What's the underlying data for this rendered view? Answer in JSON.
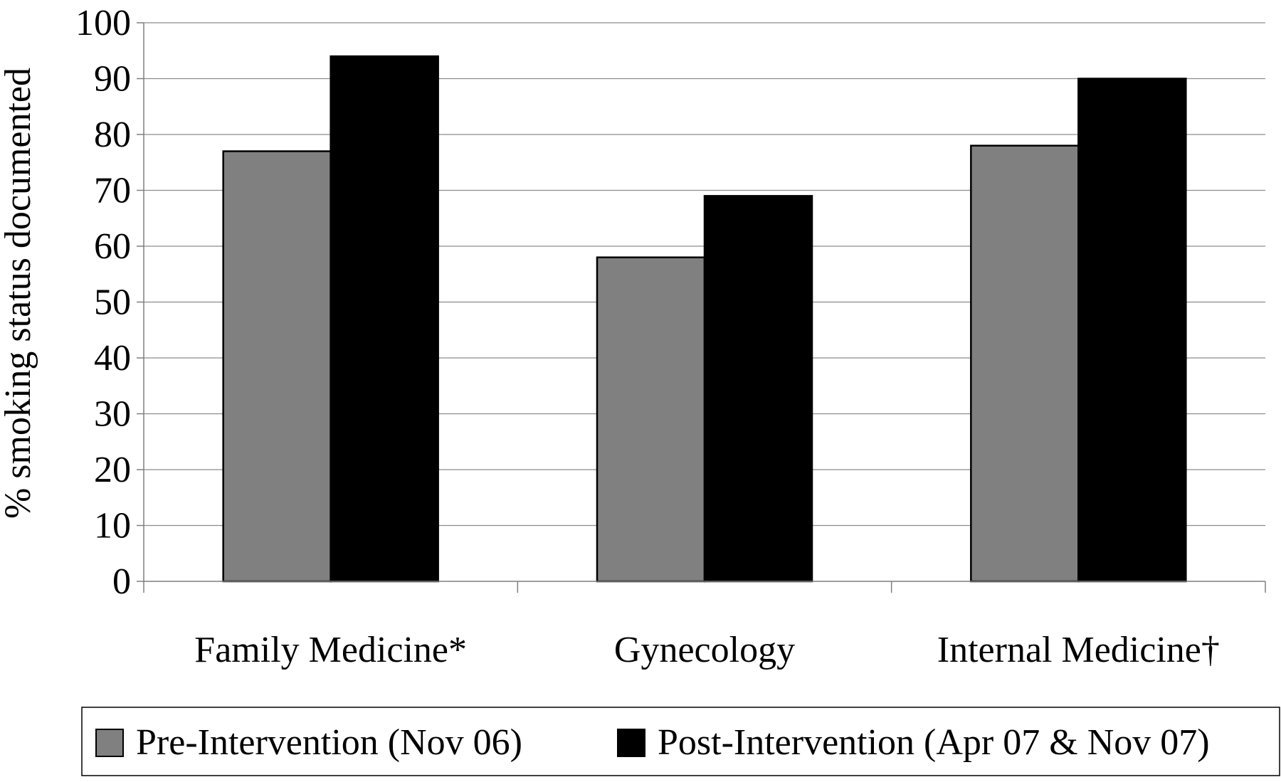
{
  "chart_data": {
    "type": "bar",
    "title": "",
    "xlabel": "",
    "ylabel": "% smoking status documented",
    "categories": [
      "Family Medicine*",
      "Gynecology",
      "Internal Medicine†"
    ],
    "series": [
      {
        "name": "Pre-Intervention (Nov 06)",
        "values": [
          77,
          58,
          78
        ],
        "color": "#808080"
      },
      {
        "name": "Post-Intervention (Apr 07 & Nov 07)",
        "values": [
          94,
          69,
          90
        ],
        "color": "#000000"
      }
    ],
    "ylim": [
      0,
      100
    ],
    "yticks": [
      "0",
      "10",
      "20",
      "30",
      "40",
      "50",
      "60",
      "70",
      "80",
      "90",
      "100"
    ],
    "grid": true,
    "legend_position": "bottom"
  }
}
